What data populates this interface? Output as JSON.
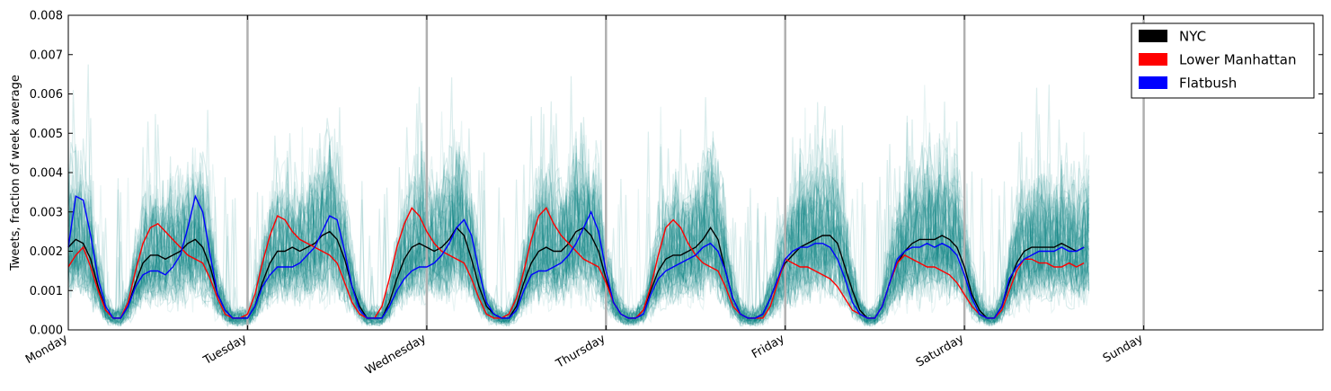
{
  "chart_data": {
    "type": "line",
    "ylabel": "Tweets, fraction of week awerage",
    "ylim": [
      0,
      0.008
    ],
    "y_ticks": [
      "0.000",
      "0.001",
      "0.002",
      "0.003",
      "0.004",
      "0.005",
      "0.006",
      "0.007",
      "0.008"
    ],
    "xlim": [
      0,
      168
    ],
    "x_ticks": [
      {
        "label": "Monday",
        "hour": 0
      },
      {
        "label": "Tuesday",
        "hour": 24
      },
      {
        "label": "Wednesday",
        "hour": 48
      },
      {
        "label": "Thursday",
        "hour": 72
      },
      {
        "label": "Friday",
        "hour": 96
      },
      {
        "label": "Saturday",
        "hour": 120
      },
      {
        "label": "Sunday",
        "hour": 144
      }
    ],
    "day_dividers": [
      24,
      48,
      72,
      96,
      120,
      144
    ],
    "grid": false,
    "legend": {
      "position": "top-right",
      "entries": [
        {
          "name": "NYC",
          "color": "#000000"
        },
        {
          "name": "Lower Manhattan",
          "color": "#ff0000"
        },
        {
          "name": "Flatbush",
          "color": "#0000ff"
        }
      ]
    },
    "background_band": {
      "color": "#008080",
      "description_series_count": 60
    },
    "series": [
      {
        "name": "NYC",
        "color": "#000000",
        "values": [
          0.0021,
          0.0023,
          0.0022,
          0.0018,
          0.0011,
          0.0005,
          0.0003,
          0.0003,
          0.0006,
          0.0012,
          0.0017,
          0.0019,
          0.0019,
          0.0018,
          0.0019,
          0.002,
          0.0022,
          0.0023,
          0.0021,
          0.0016,
          0.0009,
          0.0005,
          0.0003,
          0.0003,
          0.0003,
          0.0006,
          0.0012,
          0.0017,
          0.002,
          0.002,
          0.0021,
          0.002,
          0.0021,
          0.0022,
          0.0024,
          0.0025,
          0.0023,
          0.0018,
          0.0011,
          0.0006,
          0.0003,
          0.0003,
          0.0003,
          0.0007,
          0.0013,
          0.0018,
          0.0021,
          0.0022,
          0.0021,
          0.002,
          0.0021,
          0.0023,
          0.0026,
          0.0024,
          0.0018,
          0.0011,
          0.0006,
          0.0004,
          0.0003,
          0.0003,
          0.0006,
          0.0012,
          0.0017,
          0.002,
          0.0021,
          0.002,
          0.002,
          0.0022,
          0.0025,
          0.0026,
          0.0024,
          0.002,
          0.0013,
          0.0007,
          0.0004,
          0.0003,
          0.0003,
          0.0005,
          0.001,
          0.0015,
          0.0018,
          0.0019,
          0.0019,
          0.002,
          0.0021,
          0.0023,
          0.0026,
          0.0023,
          0.0015,
          0.0008,
          0.0004,
          0.0003,
          0.0003,
          0.0004,
          0.0008,
          0.0013,
          0.0017,
          0.0019,
          0.0021,
          0.0022,
          0.0023,
          0.0024,
          0.0024,
          0.0022,
          0.0016,
          0.001,
          0.0005,
          0.0003,
          0.0003,
          0.0006,
          0.0012,
          0.0017,
          0.002,
          0.0022,
          0.0023,
          0.0023,
          0.0023,
          0.0024,
          0.0023,
          0.0021,
          0.0016,
          0.0009,
          0.0005,
          0.0003,
          0.0003,
          0.0006,
          0.0012,
          0.0017,
          0.002,
          0.0021,
          0.0021,
          0.0021,
          0.0021,
          0.0022,
          0.0021,
          0.002,
          0.0021
        ]
      },
      {
        "name": "Lower Manhattan",
        "color": "#ff0000",
        "values": [
          0.0016,
          0.0019,
          0.0021,
          0.0016,
          0.001,
          0.0005,
          0.0003,
          0.0003,
          0.0007,
          0.0015,
          0.0022,
          0.0026,
          0.0027,
          0.0025,
          0.0023,
          0.0021,
          0.0019,
          0.0018,
          0.0017,
          0.0013,
          0.0008,
          0.0004,
          0.0003,
          0.0003,
          0.0004,
          0.0009,
          0.0017,
          0.0024,
          0.0029,
          0.0028,
          0.0025,
          0.0023,
          0.0022,
          0.0021,
          0.002,
          0.0019,
          0.0017,
          0.0012,
          0.0007,
          0.0004,
          0.0003,
          0.0003,
          0.0006,
          0.0013,
          0.0021,
          0.0027,
          0.0031,
          0.0029,
          0.0025,
          0.0022,
          0.002,
          0.0019,
          0.0018,
          0.0017,
          0.0013,
          0.0008,
          0.0004,
          0.0003,
          0.0003,
          0.0004,
          0.0008,
          0.0015,
          0.0023,
          0.0029,
          0.0031,
          0.0027,
          0.0024,
          0.0022,
          0.002,
          0.0018,
          0.0017,
          0.0016,
          0.0012,
          0.0007,
          0.0004,
          0.0003,
          0.0003,
          0.0005,
          0.0011,
          0.0019,
          0.0026,
          0.0028,
          0.0026,
          0.0022,
          0.0019,
          0.0017,
          0.0016,
          0.0015,
          0.0011,
          0.0006,
          0.0004,
          0.0003,
          0.0003,
          0.0003,
          0.0006,
          0.0012,
          0.0018,
          0.0017,
          0.0016,
          0.0016,
          0.0015,
          0.0014,
          0.0013,
          0.0011,
          0.0008,
          0.0005,
          0.0004,
          0.0003,
          0.0003,
          0.0006,
          0.0012,
          0.0017,
          0.0019,
          0.0018,
          0.0017,
          0.0016,
          0.0016,
          0.0015,
          0.0014,
          0.0012,
          0.0009,
          0.0006,
          0.0004,
          0.0003,
          0.0003,
          0.0005,
          0.001,
          0.0015,
          0.0018,
          0.0018,
          0.0017,
          0.0017,
          0.0016,
          0.0016,
          0.0017,
          0.0016,
          0.0017
        ]
      },
      {
        "name": "Flatbush",
        "color": "#0000ff",
        "values": [
          0.0021,
          0.0034,
          0.0033,
          0.0024,
          0.0013,
          0.0006,
          0.0003,
          0.0003,
          0.0006,
          0.0011,
          0.0014,
          0.0015,
          0.0015,
          0.0014,
          0.0016,
          0.0019,
          0.0026,
          0.0034,
          0.003,
          0.0019,
          0.0009,
          0.0005,
          0.0003,
          0.0003,
          0.0003,
          0.0006,
          0.0011,
          0.0014,
          0.0016,
          0.0016,
          0.0016,
          0.0017,
          0.0019,
          0.0021,
          0.0025,
          0.0029,
          0.0028,
          0.002,
          0.0011,
          0.0005,
          0.0003,
          0.0003,
          0.0003,
          0.0006,
          0.001,
          0.0013,
          0.0015,
          0.0016,
          0.0016,
          0.0017,
          0.0019,
          0.0022,
          0.0026,
          0.0028,
          0.0024,
          0.0015,
          0.0007,
          0.0004,
          0.0003,
          0.0003,
          0.0005,
          0.001,
          0.0014,
          0.0015,
          0.0015,
          0.0016,
          0.0017,
          0.0019,
          0.0022,
          0.0026,
          0.003,
          0.0025,
          0.0015,
          0.0007,
          0.0004,
          0.0003,
          0.0003,
          0.0004,
          0.0009,
          0.0013,
          0.0015,
          0.0016,
          0.0017,
          0.0018,
          0.0019,
          0.0021,
          0.0022,
          0.002,
          0.0015,
          0.0008,
          0.0004,
          0.0003,
          0.0003,
          0.0004,
          0.0008,
          0.0013,
          0.0018,
          0.002,
          0.0021,
          0.0021,
          0.0022,
          0.0022,
          0.0021,
          0.0018,
          0.0013,
          0.0007,
          0.0004,
          0.0003,
          0.0003,
          0.0006,
          0.0012,
          0.0018,
          0.002,
          0.0021,
          0.0021,
          0.0022,
          0.0021,
          0.0022,
          0.0021,
          0.0019,
          0.0014,
          0.0008,
          0.0004,
          0.0003,
          0.0003,
          0.0006,
          0.0013,
          0.0016,
          0.0018,
          0.0019,
          0.002,
          0.002,
          0.002,
          0.0021,
          0.002,
          0.002,
          0.0021
        ]
      }
    ]
  }
}
